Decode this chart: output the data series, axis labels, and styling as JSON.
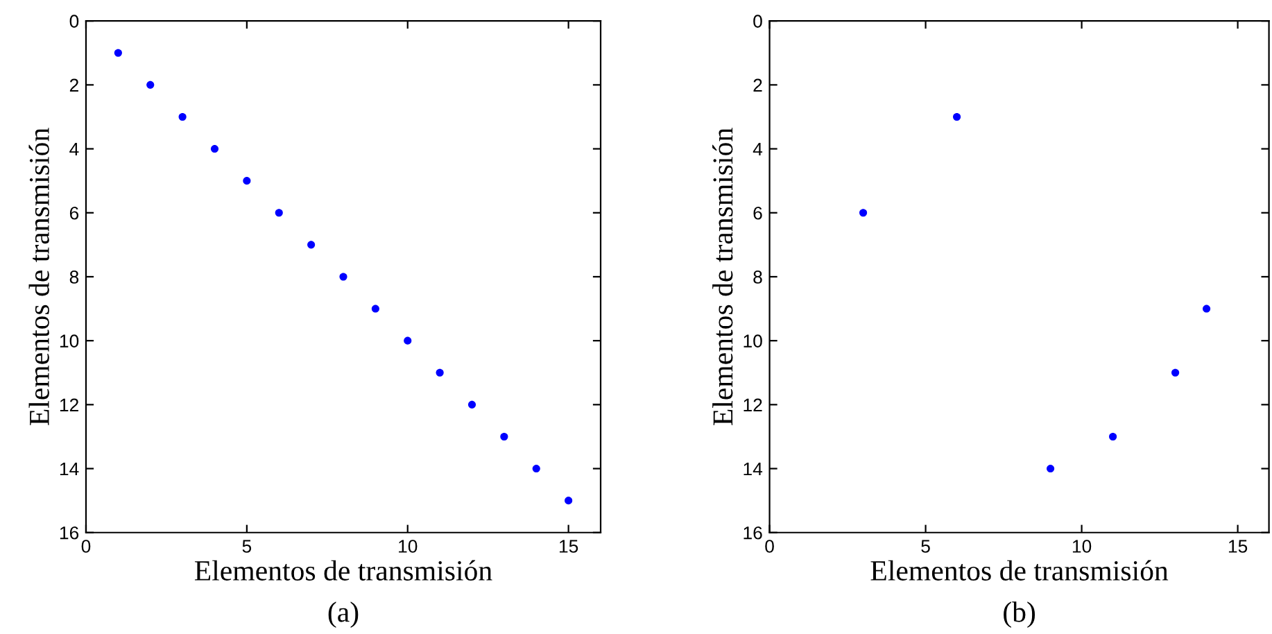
{
  "chart_data": [
    {
      "type": "scatter",
      "xlabel": "Elementos de transmisión",
      "ylabel": "Elementos de transmisión",
      "annotations": [
        "(a)"
      ],
      "x": [
        1,
        2,
        3,
        4,
        5,
        6,
        7,
        8,
        9,
        10,
        11,
        12,
        13,
        14,
        15
      ],
      "series": [
        {
          "color": "#0000ff",
          "values": [
            1,
            2,
            3,
            4,
            5,
            6,
            7,
            8,
            9,
            10,
            11,
            12,
            13,
            14,
            15
          ]
        }
      ],
      "xlim": [
        0,
        16
      ],
      "ylim": [
        16,
        0
      ],
      "xticks": [
        0,
        5,
        10,
        15
      ],
      "yticks": [
        0,
        2,
        4,
        6,
        8,
        10,
        12,
        14,
        16
      ],
      "marker": "circle",
      "grid": false,
      "legend": false
    },
    {
      "type": "scatter",
      "xlabel": "Elementos de transmisión",
      "ylabel": "Elementos de transmisión",
      "annotations": [
        "(b)"
      ],
      "x": [
        3,
        6,
        9,
        11,
        13,
        14
      ],
      "series": [
        {
          "color": "#0000ff",
          "values": [
            6,
            3,
            14,
            13,
            11,
            9
          ]
        }
      ],
      "xlim": [
        0,
        16
      ],
      "ylim": [
        16,
        0
      ],
      "xticks": [
        0,
        5,
        10,
        15
      ],
      "yticks": [
        0,
        2,
        4,
        6,
        8,
        10,
        12,
        14,
        16
      ],
      "marker": "circle",
      "grid": false,
      "legend": false
    }
  ]
}
